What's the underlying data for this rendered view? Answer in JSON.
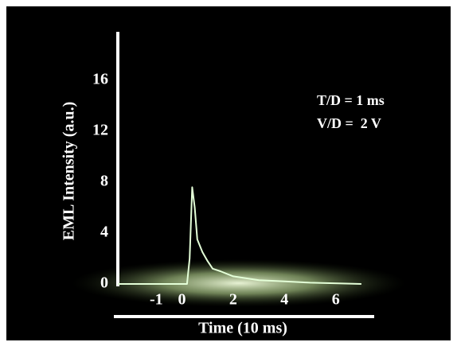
{
  "chart_data": {
    "type": "line",
    "xlabel": "Time (10 ms)",
    "ylabel": "EML Intensity (a.u.)",
    "annotations": [
      "T/D = 1 ms",
      "V/D =  2 V"
    ],
    "x": [
      -2.5,
      -1,
      0,
      0.2,
      0.3,
      0.4,
      0.5,
      0.6,
      0.8,
      1.0,
      1.2,
      1.5,
      2,
      3,
      4,
      5,
      7
    ],
    "series": [
      {
        "color": "#e4ffd8",
        "values": [
          0,
          0,
          0,
          0,
          2,
          7.6,
          6,
          3.5,
          2.5,
          1.8,
          1.2,
          1.0,
          0.6,
          0.3,
          0.2,
          0.1,
          0
        ]
      }
    ],
    "xlim": [
      -2.5,
      7.5
    ],
    "ylim": [
      0,
      20
    ],
    "xticks": [
      -1,
      0,
      2,
      4,
      6
    ],
    "yticks": [
      0,
      4,
      8,
      12,
      16
    ]
  }
}
